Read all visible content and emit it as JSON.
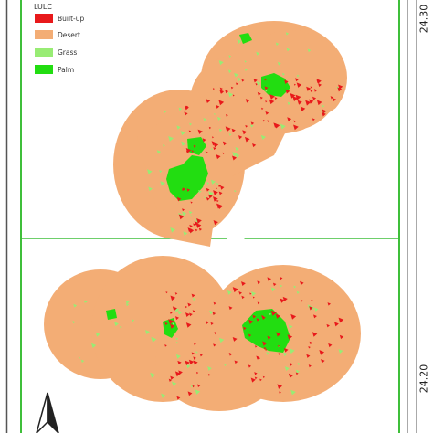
{
  "legend": {
    "title": "LULC",
    "items": [
      {
        "label": "Built-up",
        "color": "#e8191b"
      },
      {
        "label": "Desert",
        "color": "#f3ad75"
      },
      {
        "label": "Grass",
        "color": "#98ec74"
      },
      {
        "label": "Palm",
        "color": "#22dd11"
      }
    ]
  },
  "grid": {
    "lat_top": "24.30",
    "lat_bottom": "24.20"
  },
  "colors": {
    "frame_green": "#3fbf3a",
    "built_up": "#e8191b",
    "desert": "#f3ad75",
    "grass": "#98ec74",
    "palm": "#22dd11"
  },
  "north_arrow": {
    "icon": "north-arrow-icon"
  }
}
